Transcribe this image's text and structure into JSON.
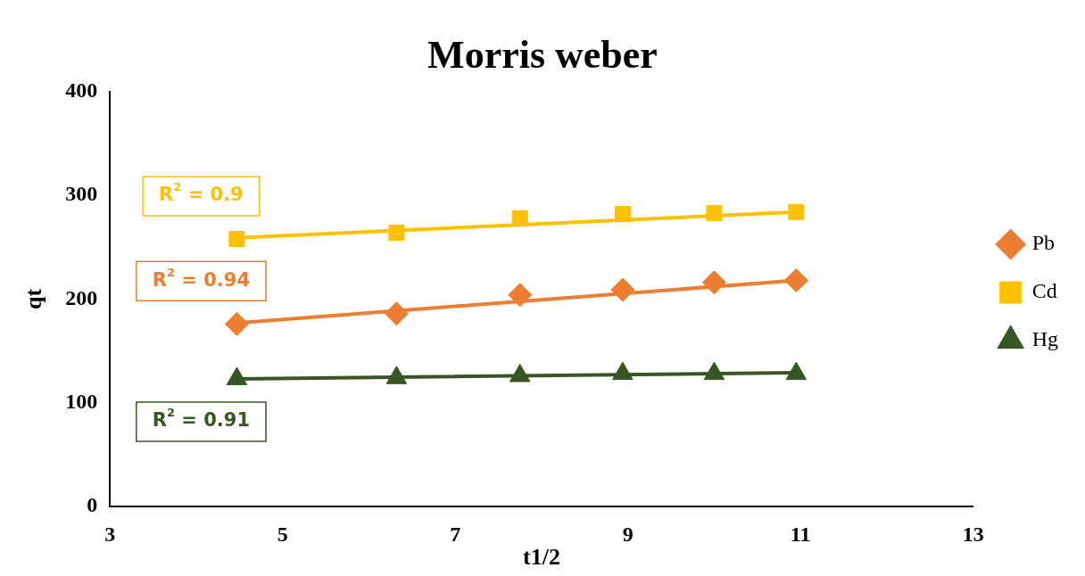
{
  "chart_data": {
    "type": "scatter",
    "title": "Morris weber",
    "xlabel": "t1/2",
    "ylabel": "qt",
    "xlim": [
      3,
      13
    ],
    "xticks": [
      3,
      5,
      7,
      9,
      11,
      13
    ],
    "ylim": [
      0,
      400
    ],
    "yticks": [
      0,
      100,
      200,
      300,
      400
    ],
    "grid": false,
    "legend": "right",
    "series": [
      {
        "name": "Pb",
        "color": "#ed7d31",
        "marker": "diamond",
        "x": [
          4.47,
          6.32,
          7.75,
          8.94,
          10,
          10.95
        ],
        "values": [
          176,
          186,
          204,
          209,
          216,
          218
        ]
      },
      {
        "name": "Cd",
        "color": "#ffc000",
        "marker": "square",
        "x": [
          4.47,
          6.32,
          7.75,
          8.94,
          10,
          10.95
        ],
        "values": [
          258,
          264,
          278,
          282,
          283,
          284
        ]
      },
      {
        "name": "Hg",
        "color": "#375623",
        "marker": "triangle",
        "x": [
          4.47,
          6.32,
          7.75,
          8.94,
          10,
          10.95
        ],
        "values": [
          123,
          124,
          126,
          128,
          128,
          128
        ]
      },
      {
        "type": "line",
        "color": "#ed7d31",
        "marker": "none",
        "x": [
          4.47,
          10.95
        ],
        "values": [
          177,
          218
        ]
      },
      {
        "type": "line",
        "color": "#ffc000",
        "marker": "none",
        "x": [
          4.47,
          10.95
        ],
        "values": [
          259,
          284
        ]
      },
      {
        "type": "line",
        "color": "#375623",
        "marker": "none",
        "x": [
          4.47,
          10.95
        ],
        "values": [
          123,
          129
        ]
      }
    ],
    "annotations": [
      "R$^{2}$ = 0.94",
      "R$^{2}$ = 0.9",
      "R$^{2}$ = 0.91"
    ]
  }
}
